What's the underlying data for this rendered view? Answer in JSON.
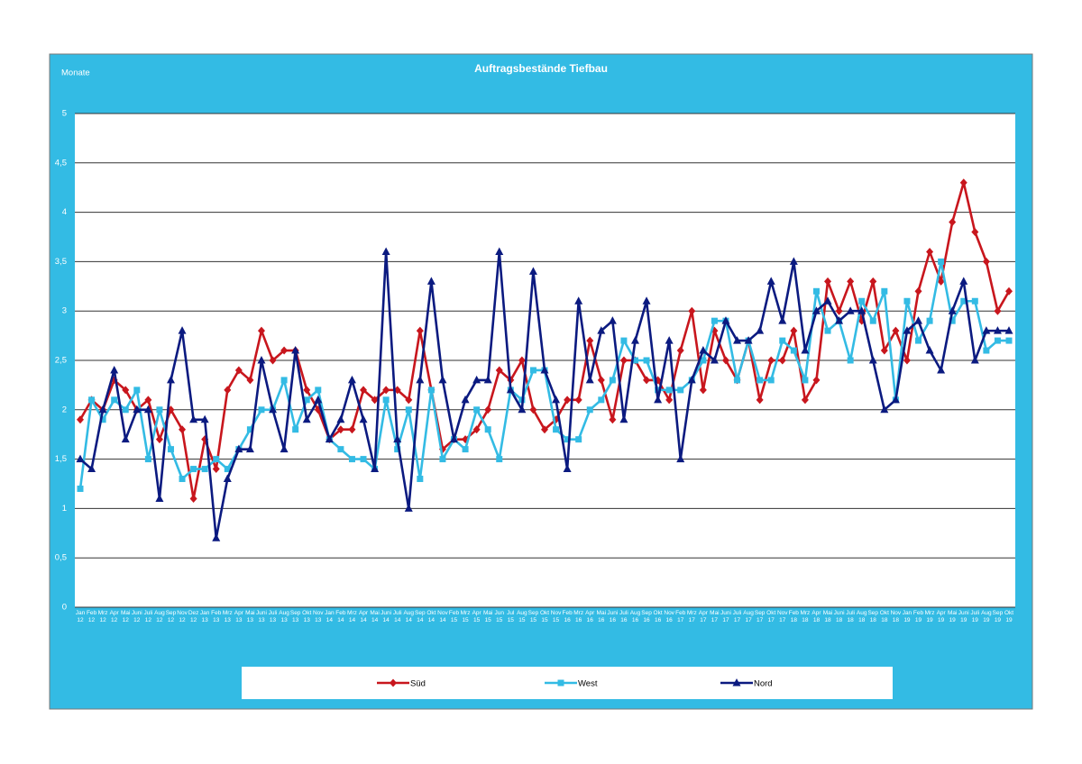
{
  "chart_data": {
    "type": "line",
    "title": "Auftragsbestände Tiefbau",
    "y_label": "Monate",
    "categories": [
      "Jan 12",
      "Feb 12",
      "Mrz 12",
      "Apr 12",
      "Mai 12",
      "Juni 12",
      "Juli 12",
      "Aug 12",
      "Sep 12",
      "Nov 12",
      "Dez 12",
      "Jan 13",
      "Feb 13",
      "Mrz 13",
      "Apr 13",
      "Mai 13",
      "Juni 13",
      "Juli 13",
      "Aug 13",
      "Sep 13",
      "Okt 13",
      "Nov 13",
      "Jan 14",
      "Feb 14",
      "Mrz 14",
      "Apr 14",
      "Mai 14",
      "Juni 14",
      "Juli 14",
      "Aug 14",
      "Sep 14",
      "Okt 14",
      "Nov 14",
      "Feb 15",
      "Mrz 15",
      "Apr 15",
      "Mai 15",
      "Jun 15",
      "Jul 15",
      "Aug 15",
      "Sep 15",
      "Okt 15",
      "Nov 15",
      "Feb 16",
      "Mrz 16",
      "Apr 16",
      "Mai 16",
      "Juni 16",
      "Juli 16",
      "Aug 16",
      "Sep 16",
      "Okt 16",
      "Nov 16",
      "Feb 17",
      "Mrz 17",
      "Apr 17",
      "Mai 17",
      "Juni 17",
      "Juli 17",
      "Aug 17",
      "Sep 17",
      "Okt 17",
      "Nov 17",
      "Feb 18",
      "Mrz 18",
      "Apr 18",
      "Mai 18",
      "Juni 18",
      "Juli 18",
      "Aug 18",
      "Sep 18",
      "Okt 18",
      "Nov 18",
      "Jan 19",
      "Feb 19",
      "Mrz 19",
      "Apr 19",
      "Mai 19",
      "Juni 19",
      "Juli 19",
      "Aug 19",
      "Sep 19",
      "Okt 19"
    ],
    "series": [
      {
        "name": "Süd",
        "color": "#c8161d",
        "marker": "diamond",
        "values": [
          1.9,
          2.1,
          2.0,
          2.3,
          2.2,
          2.0,
          2.1,
          1.7,
          2.0,
          1.8,
          1.1,
          1.7,
          1.4,
          2.2,
          2.4,
          2.3,
          2.8,
          2.5,
          2.6,
          2.6,
          2.2,
          2.0,
          1.7,
          1.8,
          1.8,
          2.2,
          2.1,
          2.2,
          2.2,
          2.1,
          2.8,
          2.2,
          1.6,
          1.7,
          1.7,
          1.8,
          2.0,
          2.4,
          2.3,
          2.5,
          2.0,
          1.8,
          1.9,
          2.1,
          2.1,
          2.7,
          2.3,
          1.9,
          2.5,
          2.5,
          2.3,
          2.3,
          2.1,
          2.6,
          3.0,
          2.2,
          2.8,
          2.5,
          2.3,
          2.7,
          2.1,
          2.5,
          2.5,
          2.8,
          2.1,
          2.3,
          3.3,
          3.0,
          3.3,
          2.9,
          3.3,
          2.6,
          2.8,
          2.5,
          3.2,
          3.6,
          3.3,
          3.9,
          4.3,
          3.8,
          3.5,
          3.0,
          3.2
        ]
      },
      {
        "name": "West",
        "color": "#33bbe4",
        "marker": "square",
        "values": [
          1.2,
          2.1,
          1.9,
          2.1,
          2.0,
          2.2,
          1.5,
          2.0,
          1.6,
          1.3,
          1.4,
          1.4,
          1.5,
          1.4,
          1.6,
          1.8,
          2.0,
          2.0,
          2.3,
          1.8,
          2.1,
          2.2,
          1.7,
          1.6,
          1.5,
          1.5,
          1.4,
          2.1,
          1.6,
          2.0,
          1.3,
          2.2,
          1.5,
          1.7,
          1.6,
          2.0,
          1.8,
          1.5,
          2.2,
          2.1,
          2.4,
          2.4,
          1.8,
          1.7,
          1.7,
          2.0,
          2.1,
          2.3,
          2.7,
          2.5,
          2.5,
          2.2,
          2.2,
          2.2,
          2.3,
          2.5,
          2.9,
          2.9,
          2.3,
          2.7,
          2.3,
          2.3,
          2.7,
          2.6,
          2.3,
          3.2,
          2.8,
          2.9,
          2.5,
          3.1,
          2.9,
          3.2,
          2.1,
          3.1,
          2.7,
          2.9,
          3.5,
          2.9,
          3.1,
          3.1,
          2.6,
          2.7,
          2.7
        ]
      },
      {
        "name": "Nord",
        "color": "#0b1a80",
        "marker": "triangle",
        "values": [
          1.5,
          1.4,
          2.0,
          2.4,
          1.7,
          2.0,
          2.0,
          1.1,
          2.3,
          2.8,
          1.9,
          1.9,
          0.7,
          1.3,
          1.6,
          1.6,
          2.5,
          2.0,
          1.6,
          2.6,
          1.9,
          2.1,
          1.7,
          1.9,
          2.3,
          1.9,
          1.4,
          3.6,
          1.7,
          1.0,
          2.3,
          3.3,
          2.3,
          1.7,
          2.1,
          2.3,
          2.3,
          3.6,
          2.2,
          2.0,
          3.4,
          2.4,
          2.1,
          1.4,
          3.1,
          2.3,
          2.8,
          2.9,
          1.9,
          2.7,
          3.1,
          2.1,
          2.7,
          1.5,
          2.3,
          2.6,
          2.5,
          2.9,
          2.7,
          2.7,
          2.8,
          3.3,
          2.9,
          3.5,
          2.6,
          3.0,
          3.1,
          2.9,
          3.0,
          3.0,
          2.5,
          2.0,
          2.1,
          2.8,
          2.9,
          2.6,
          2.4,
          3.0,
          3.3,
          2.5,
          2.8,
          2.8,
          2.8
        ]
      }
    ],
    "ylim": [
      0,
      5
    ],
    "yticks": [
      0,
      {
        "value": 0.5,
        "label": "0,5"
      },
      1,
      {
        "value": 1.5,
        "label": "1,5"
      },
      2,
      {
        "value": 2.5,
        "label": "2,5"
      },
      3,
      {
        "value": 3.5,
        "label": "3,5"
      },
      4,
      {
        "value": 4.5,
        "label": "4,5"
      },
      5
    ],
    "grid": true,
    "legend": "bottom"
  }
}
